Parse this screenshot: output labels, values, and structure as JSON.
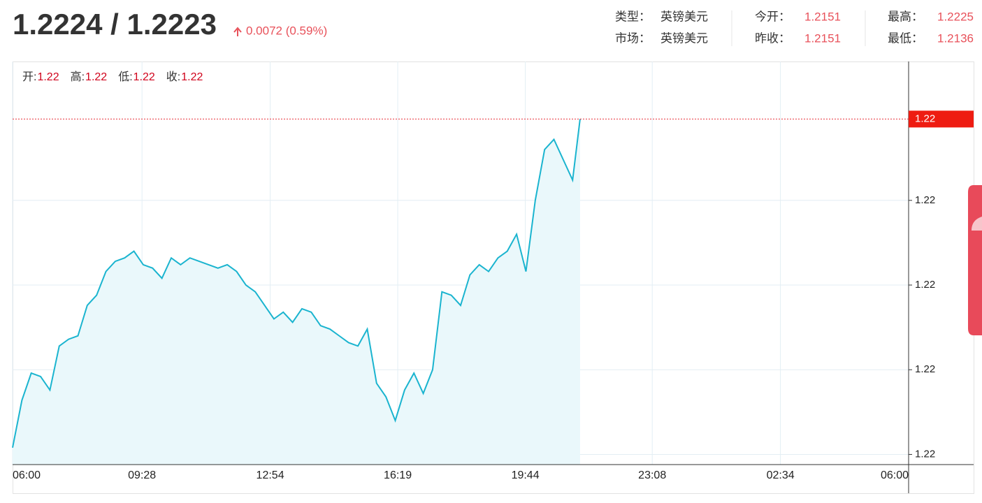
{
  "header": {
    "quote": "1.2224 / 1.2223",
    "change": "0.0072 (0.59%)",
    "info": [
      [
        {
          "label": "类型：",
          "value": "英镑美元"
        },
        {
          "label": "今开：",
          "value": "1.2151"
        },
        {
          "label": "最高：",
          "value": "1.2225"
        }
      ],
      [
        {
          "label": "市场：",
          "value": "英镑美元"
        },
        {
          "label": "昨收：",
          "value": "1.2151"
        },
        {
          "label": "最低：",
          "value": "1.2136"
        }
      ]
    ]
  },
  "chart_data": {
    "type": "area",
    "ohlc": [
      {
        "label": "开:",
        "value": "1.22"
      },
      {
        "label": "高:",
        "value": "1.22"
      },
      {
        "label": "低:",
        "value": "1.22"
      },
      {
        "label": "收:",
        "value": "1.22"
      }
    ],
    "x": [
      0,
      15,
      30,
      45,
      60,
      75,
      90,
      105,
      120,
      135,
      150,
      165,
      180,
      195,
      210,
      225,
      240,
      255,
      270,
      285,
      300,
      315,
      330,
      345,
      360,
      375,
      390,
      405,
      420,
      435,
      450,
      465,
      480,
      495,
      510,
      525,
      540,
      555,
      570,
      585,
      600,
      615,
      630,
      645,
      660,
      675,
      690,
      705,
      720,
      735,
      750,
      765,
      780,
      795,
      810,
      825,
      840,
      855,
      870,
      885,
      900,
      912
    ],
    "values": [
      1.2127,
      1.2141,
      1.2149,
      1.2148,
      1.2144,
      1.2157,
      1.2159,
      1.216,
      1.2169,
      1.2172,
      1.2179,
      1.2182,
      1.2183,
      1.2185,
      1.2181,
      1.218,
      1.2177,
      1.2183,
      1.2181,
      1.2183,
      1.2182,
      1.2181,
      1.218,
      1.2181,
      1.2179,
      1.2175,
      1.2173,
      1.2169,
      1.2165,
      1.2167,
      1.2164,
      1.2168,
      1.2167,
      1.2163,
      1.2162,
      1.216,
      1.2158,
      1.2157,
      1.2162,
      1.2146,
      1.2142,
      1.2135,
      1.2144,
      1.2149,
      1.2143,
      1.215,
      1.2173,
      1.2172,
      1.2169,
      1.2178,
      1.2181,
      1.2179,
      1.2183,
      1.2185,
      1.219,
      1.2179,
      1.22,
      1.2215,
      1.2218,
      1.2212,
      1.2206,
      1.2224
    ],
    "color": "#1ab4cf",
    "xlim": [
      0,
      1440
    ],
    "xticks": [
      {
        "value": 0,
        "label": "06:00"
      },
      {
        "value": 208,
        "label": "09:28"
      },
      {
        "value": 414,
        "label": "12:54"
      },
      {
        "value": 619,
        "label": "16:19"
      },
      {
        "value": 824,
        "label": "19:44"
      },
      {
        "value": 1028,
        "label": "23:08"
      },
      {
        "value": 1234,
        "label": "02:34"
      },
      {
        "value": 1440,
        "label": "06:00"
      }
    ],
    "ylim": [
      1.2122,
      1.2241
    ],
    "yticks": [
      {
        "value": 1.2125,
        "label": "1.22"
      },
      {
        "value": 1.215,
        "label": "1.22"
      },
      {
        "value": 1.2175,
        "label": "1.22"
      },
      {
        "value": 1.22,
        "label": "1.22"
      }
    ],
    "current_price": {
      "value": 1.2224,
      "label": "1.22"
    },
    "grid": true
  }
}
